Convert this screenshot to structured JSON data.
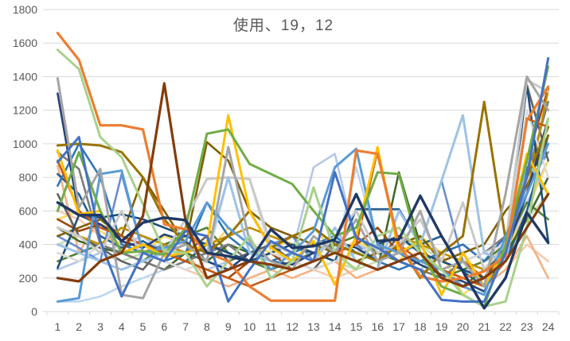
{
  "title": "使用、19，12",
  "chart_data": {
    "type": "line",
    "title": "使用、19，12",
    "xlabel": "",
    "ylabel": "",
    "x": [
      1,
      2,
      3,
      4,
      5,
      6,
      7,
      8,
      9,
      10,
      11,
      12,
      13,
      14,
      15,
      16,
      17,
      18,
      19,
      20,
      21,
      22,
      23,
      24
    ],
    "ylim": [
      0,
      1800
    ],
    "yticks": [
      0,
      200,
      400,
      600,
      800,
      1000,
      1200,
      1400,
      1600,
      1800
    ],
    "grid": true,
    "legend": "none",
    "axis_color": "#D9D9D9",
    "label_color": "#595959",
    "series": [
      {
        "color": "#B4C7E7",
        "width": 2.6,
        "values": [
          250,
          300,
          350,
          400,
          450,
          350,
          300,
          250,
          300,
          350,
          400,
          350,
          860,
          940,
          400,
          350,
          300,
          250,
          350,
          400,
          300,
          350,
          650,
          900
        ]
      },
      {
        "color": "#BDD7EE",
        "width": 2.6,
        "values": [
          60,
          60,
          90,
          150,
          200,
          250,
          300,
          350,
          400,
          350,
          300,
          250,
          300,
          350,
          860,
          400,
          350,
          300,
          250,
          300,
          350,
          400,
          800,
          1000
        ]
      },
      {
        "color": "#F8CBAD",
        "width": 2.6,
        "values": [
          600,
          550,
          450,
          400,
          350,
          300,
          250,
          200,
          150,
          200,
          250,
          300,
          250,
          200,
          250,
          300,
          350,
          300,
          250,
          200,
          150,
          250,
          400,
          300
        ]
      },
      {
        "color": "#C6E0B4",
        "width": 2.6,
        "values": [
          400,
          450,
          350,
          300,
          350,
          400,
          350,
          300,
          250,
          300,
          350,
          400,
          350,
          300,
          250,
          300,
          350,
          400,
          300,
          250,
          200,
          300,
          550,
          700
        ]
      },
      {
        "color": "#FFD966",
        "width": 2.6,
        "values": [
          550,
          600,
          480,
          400,
          350,
          450,
          400,
          350,
          500,
          400,
          350,
          450,
          500,
          350,
          420,
          350,
          300,
          450,
          350,
          100,
          200,
          350,
          600,
          900
        ]
      },
      {
        "color": "#538135",
        "width": 2.6,
        "values": [
          300,
          350,
          400,
          350,
          300,
          400,
          450,
          500,
          350,
          300,
          250,
          300,
          350,
          400,
          450,
          350,
          300,
          250,
          200,
          250,
          300,
          400,
          650,
          550
        ]
      },
      {
        "color": "#F4B183",
        "width": 2.6,
        "values": [
          870,
          350,
          560,
          450,
          350,
          300,
          350,
          200,
          150,
          200,
          250,
          200,
          250,
          300,
          200,
          250,
          300,
          350,
          250,
          200,
          150,
          250,
          450,
          200
        ]
      },
      {
        "color": "#698ED0",
        "width": 2.6,
        "values": [
          450,
          380,
          300,
          820,
          350,
          400,
          350,
          300,
          250,
          350,
          400,
          450,
          300,
          350,
          400,
          300,
          350,
          400,
          780,
          300,
          250,
          400,
          750,
          950
        ]
      },
      {
        "color": "#255E91",
        "width": 2.6,
        "values": [
          820,
          700,
          450,
          380,
          420,
          350,
          300,
          400,
          350,
          300,
          490,
          380,
          350,
          300,
          610,
          610,
          610,
          400,
          450,
          240,
          150,
          300,
          600,
          1050
        ]
      },
      {
        "color": "#43682B",
        "width": 2.6,
        "values": [
          500,
          420,
          380,
          350,
          300,
          250,
          350,
          300,
          400,
          350,
          300,
          250,
          300,
          350,
          300,
          250,
          830,
          400,
          200,
          150,
          250,
          350,
          550,
          800
        ]
      },
      {
        "color": "#2E75B6",
        "width": 2.6,
        "values": [
          750,
          1000,
          800,
          400,
          350,
          300,
          350,
          650,
          450,
          350,
          300,
          350,
          400,
          450,
          350,
          300,
          250,
          300,
          350,
          400,
          300,
          450,
          850,
          1100
        ]
      },
      {
        "color": "#7F6000",
        "width": 2.6,
        "values": [
          450,
          500,
          550,
          450,
          800,
          600,
          400,
          1010,
          900,
          600,
          500,
          450,
          400,
          350,
          300,
          350,
          400,
          450,
          300,
          350,
          400,
          600,
          750,
          1050
        ]
      },
      {
        "color": "#7B7B7B",
        "width": 2.6,
        "values": [
          950,
          850,
          400,
          350,
          300,
          250,
          300,
          350,
          400,
          300,
          350,
          300,
          250,
          300,
          350,
          400,
          300,
          250,
          200,
          300,
          350,
          450,
          800,
          1250
        ]
      },
      {
        "color": "#636363",
        "width": 2.6,
        "values": [
          700,
          450,
          380,
          300,
          250,
          400,
          350,
          450,
          300,
          350,
          400,
          300,
          250,
          400,
          350,
          300,
          450,
          350,
          300,
          250,
          200,
          400,
          1350,
          900
        ]
      },
      {
        "color": "#9E480E",
        "width": 2.6,
        "values": [
          550,
          480,
          520,
          450,
          400,
          350,
          300,
          250,
          200,
          300,
          350,
          250,
          300,
          350,
          400,
          500,
          350,
          300,
          250,
          300,
          200,
          350,
          900,
          1330
        ]
      },
      {
        "color": "#BF8F00",
        "width": 2.6,
        "values": [
          500,
          450,
          400,
          500,
          450,
          400,
          350,
          400,
          450,
          500,
          450,
          400,
          350,
          300,
          350,
          400,
          450,
          400,
          350,
          300,
          250,
          400,
          700,
          1320
        ]
      },
      {
        "color": "#1F4E79",
        "width": 2.6,
        "values": [
          260,
          575,
          560,
          580,
          550,
          500,
          450,
          400,
          350,
          300,
          350,
          400,
          350,
          300,
          350,
          400,
          450,
          350,
          300,
          250,
          200,
          300,
          1350,
          420
        ]
      },
      {
        "color": "#DBDBDB",
        "width": 2.6,
        "values": [
          350,
          300,
          400,
          100,
          350,
          300,
          250,
          300,
          800,
          790,
          350,
          300,
          250,
          300,
          350,
          400,
          350,
          300,
          250,
          300,
          350,
          400,
          1200,
          800
        ]
      },
      {
        "color": "#264478",
        "width": 2.6,
        "values": [
          1300,
          575,
          520,
          420,
          380,
          460,
          420,
          300,
          250,
          350,
          300,
          280,
          350,
          420,
          380,
          300,
          350,
          280,
          220,
          180,
          120,
          350,
          700,
          1150
        ]
      },
      {
        "color": "#C55A11",
        "width": 2.6,
        "values": [
          900,
          600,
          500,
          450,
          400,
          350,
          300,
          250,
          200,
          150,
          200,
          250,
          300,
          350,
          400,
          960,
          400,
          300,
          250,
          200,
          150,
          300,
          1150,
          1100
        ]
      },
      {
        "color": "#C9C9C9",
        "width": 3,
        "values": [
          500,
          450,
          350,
          600,
          300,
          350,
          550,
          790,
          800,
          790,
          400,
          350,
          300,
          450,
          600,
          350,
          400,
          550,
          300,
          650,
          250,
          400,
          1380,
          1310
        ]
      },
      {
        "color": "#9DC3E6",
        "width": 3,
        "values": [
          400,
          350,
          300,
          250,
          300,
          350,
          400,
          350,
          800,
          350,
          300,
          250,
          300,
          500,
          300,
          250,
          600,
          400,
          780,
          1170,
          350,
          300,
          900,
          700
        ]
      },
      {
        "color": "#997300",
        "width": 3,
        "values": [
          990,
          1000,
          990,
          950,
          800,
          550,
          400,
          350,
          450,
          600,
          380,
          450,
          500,
          400,
          350,
          300,
          400,
          200,
          350,
          450,
          1250,
          430,
          800,
          1100
        ]
      },
      {
        "color": "#5B9BD5",
        "width": 3,
        "values": [
          60,
          80,
          820,
          840,
          350,
          380,
          420,
          650,
          500,
          400,
          250,
          350,
          480,
          860,
          970,
          400,
          350,
          300,
          250,
          150,
          100,
          450,
          700,
          1000
        ]
      },
      {
        "color": "#FFC000",
        "width": 3,
        "values": [
          960,
          580,
          600,
          350,
          400,
          330,
          350,
          400,
          1170,
          600,
          380,
          300,
          420,
          160,
          450,
          980,
          350,
          420,
          100,
          350,
          150,
          380,
          940,
          700
        ]
      },
      {
        "color": "#A5A5A5",
        "width": 3,
        "values": [
          1390,
          620,
          850,
          100,
          80,
          350,
          400,
          300,
          980,
          420,
          300,
          250,
          450,
          350,
          550,
          300,
          350,
          600,
          250,
          300,
          150,
          700,
          1400,
          1200
        ]
      },
      {
        "color": "#70AD47",
        "width": 3,
        "values": [
          600,
          950,
          600,
          350,
          360,
          340,
          500,
          1060,
          1085,
          880,
          820,
          760,
          600,
          450,
          500,
          830,
          820,
          350,
          150,
          100,
          30,
          400,
          900,
          1460
        ]
      },
      {
        "color": "#A9D18E",
        "width": 3,
        "values": [
          1560,
          1445,
          1040,
          920,
          640,
          360,
          350,
          150,
          300,
          450,
          200,
          300,
          740,
          350,
          250,
          450,
          500,
          350,
          250,
          100,
          30,
          60,
          500,
          1150
        ]
      },
      {
        "color": "#ED7D31",
        "width": 3.2,
        "values": [
          1660,
          1500,
          1110,
          1110,
          1085,
          520,
          490,
          350,
          300,
          150,
          65,
          65,
          65,
          65,
          960,
          940,
          400,
          210,
          180,
          200,
          240,
          330,
          1140,
          1340
        ]
      },
      {
        "color": "#4472C4",
        "width": 3,
        "values": [
          890,
          1040,
          420,
          90,
          350,
          300,
          480,
          450,
          60,
          250,
          420,
          350,
          300,
          830,
          440,
          380,
          300,
          250,
          70,
          60,
          60,
          350,
          800,
          1510
        ]
      },
      {
        "color": "#843C0C",
        "width": 3.2,
        "values": [
          200,
          180,
          300,
          350,
          570,
          1360,
          540,
          200,
          250,
          300,
          280,
          250,
          300,
          350,
          300,
          250,
          300,
          350,
          200,
          150,
          200,
          300,
          500,
          700
        ]
      },
      {
        "color": "#203864",
        "width": 3.4,
        "values": [
          650,
          575,
          575,
          420,
          530,
          560,
          545,
          350,
          330,
          300,
          490,
          380,
          390,
          430,
          700,
          420,
          430,
          690,
          450,
          240,
          20,
          200,
          590,
          410
        ]
      }
    ]
  }
}
